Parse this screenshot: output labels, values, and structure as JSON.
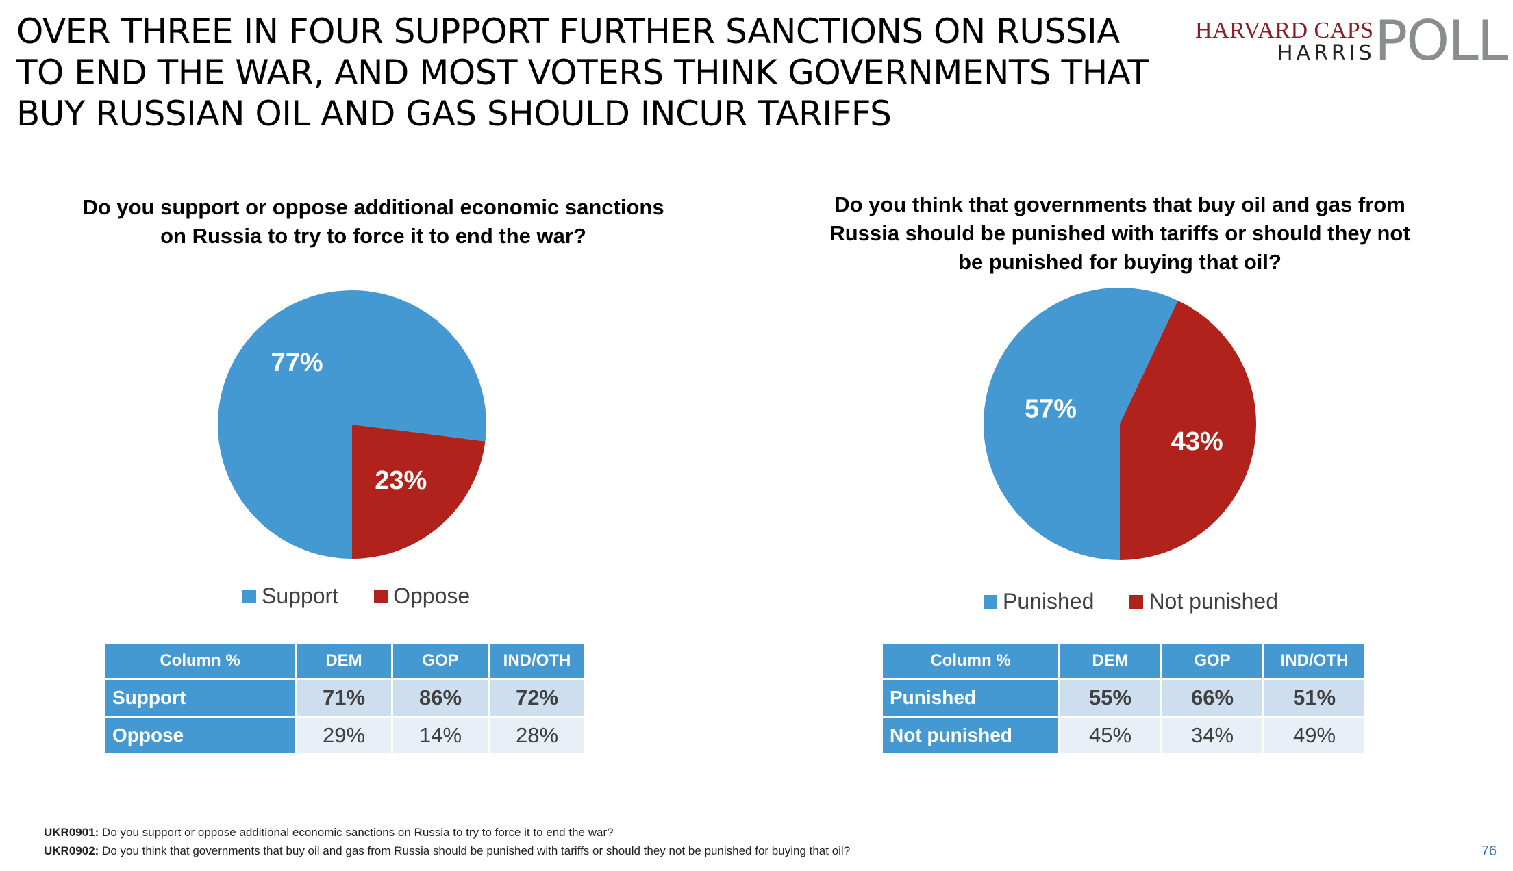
{
  "headline": "OVER THREE IN FOUR SUPPORT FURTHER SANCTIONS ON RUSSIA TO END THE WAR, AND MOST VOTERS THINK GOVERNMENTS THAT BUY RUSSIAN OIL AND GAS SHOULD INCUR TARIFFS",
  "logo": {
    "line1": "HARVARD CAPS",
    "line2": "HARRIS",
    "line3": "POLL"
  },
  "colors": {
    "blue": "#4599d3",
    "red": "#b0221b",
    "header_blue": "#4599d3",
    "page_number": "#2e75b6"
  },
  "chart_data": [
    {
      "type": "pie",
      "title": "Do you support or oppose additional economic sanctions on Russia to try to force it to end the war?",
      "slices": [
        {
          "label": "Support",
          "value": 77,
          "display": "77%",
          "color": "#4599d3"
        },
        {
          "label": "Oppose",
          "value": 23,
          "display": "23%",
          "color": "#b0221b"
        }
      ],
      "legend": [
        "Support",
        "Oppose"
      ],
      "legend_position": "bottom",
      "table": {
        "header": [
          "Column %",
          "DEM",
          "GOP",
          "IND/OTH"
        ],
        "rows": [
          {
            "label": "Support",
            "values": [
              "71%",
              "86%",
              "72%"
            ]
          },
          {
            "label": "Oppose",
            "values": [
              "29%",
              "14%",
              "28%"
            ]
          }
        ]
      }
    },
    {
      "type": "pie",
      "title": "Do you think that governments that buy oil and gas from Russia should be punished with tariffs or should they not be punished for buying that oil?",
      "slices": [
        {
          "label": "Punished",
          "value": 57,
          "display": "57%",
          "color": "#4599d3"
        },
        {
          "label": "Not punished",
          "value": 43,
          "display": "43%",
          "color": "#b0221b"
        }
      ],
      "legend": [
        "Punished",
        "Not punished"
      ],
      "legend_position": "bottom",
      "table": {
        "header": [
          "Column %",
          "DEM",
          "GOP",
          "IND/OTH"
        ],
        "rows": [
          {
            "label": "Punished",
            "values": [
              "55%",
              "66%",
              "51%"
            ]
          },
          {
            "label": "Not punished",
            "values": [
              "45%",
              "34%",
              "49%"
            ]
          }
        ]
      }
    }
  ],
  "footnotes": [
    {
      "code": "UKR0901:",
      "text": " Do you support or oppose additional economic sanctions on Russia to try to force it to end the war?"
    },
    {
      "code": "UKR0902:",
      "text": " Do you think that governments that buy oil and gas from Russia should be punished with tariffs or should they not be punished for buying that oil?"
    }
  ],
  "page_number": "76"
}
